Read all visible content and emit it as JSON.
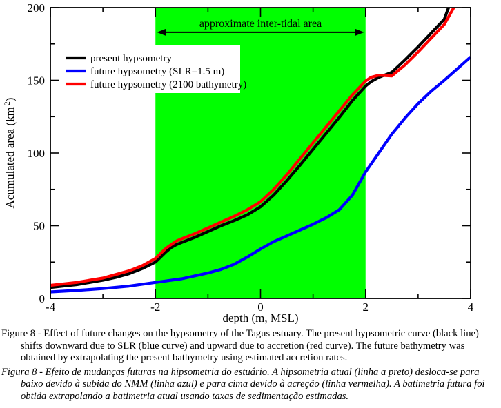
{
  "figure": {
    "caption_en": "Figure 8 - Effect of future changes on the hypsometry of the Tagus estuary. The present hypsometric curve (black line) shifts downward due to SLR (blue curve) and upward due to accretion (red curve). The future bathymetry was obtained by extrapolating the present bathymetry using estimated accretion rates.",
    "caption_pt": "Figura 8 - Efeito de mudanças futuras na hipsometria do estuário. A hipsometria atual (linha a preto) desloca-se para baixo devido à subida do NMM (linha azul) e para cima devido à acreção (linha vermelha). A batimetria futura foi obtida extrapolando a batimetria atual usando taxas de sedimentação estimadas."
  },
  "chart_data": {
    "type": "line",
    "xlabel": "depth (m, MSL)",
    "ylabel_parts": [
      "Acumulated area (km",
      "2",
      ")"
    ],
    "xlim": [
      -4,
      4
    ],
    "ylim": [
      0,
      200
    ],
    "x_major_ticks": [
      -4,
      -2,
      0,
      2,
      4
    ],
    "x_minor_ticks": [
      -3,
      -1,
      1,
      3
    ],
    "y_major_ticks": [
      0,
      50,
      100,
      150,
      200
    ],
    "y_minor_ticks": [
      25,
      75,
      125,
      175
    ],
    "grid": false,
    "legend_position": "upper-left",
    "intertidal_band": {
      "x0": -2,
      "x1": 2,
      "color": "#00ff00",
      "label": "approximate inter-tidal area",
      "arrow_y_value": 183,
      "label_y_value": 189
    },
    "series": [
      {
        "name": "present hypsometry",
        "color": "#000000",
        "points": [
          [
            -4,
            7.5
          ],
          [
            -3.75,
            8.5
          ],
          [
            -3.5,
            9.5
          ],
          [
            -3.25,
            11
          ],
          [
            -3,
            12.5
          ],
          [
            -2.75,
            14.5
          ],
          [
            -2.5,
            17
          ],
          [
            -2.25,
            20.5
          ],
          [
            -2,
            25
          ],
          [
            -1.9,
            28.5
          ],
          [
            -1.8,
            32
          ],
          [
            -1.7,
            35
          ],
          [
            -1.6,
            37
          ],
          [
            -1.5,
            38.5
          ],
          [
            -1.25,
            42
          ],
          [
            -1,
            46
          ],
          [
            -0.75,
            50
          ],
          [
            -0.5,
            53.5
          ],
          [
            -0.25,
            57.5
          ],
          [
            0,
            63
          ],
          [
            0.25,
            71
          ],
          [
            0.5,
            81
          ],
          [
            0.75,
            91.5
          ],
          [
            1,
            102.5
          ],
          [
            1.25,
            113.5
          ],
          [
            1.5,
            124.5
          ],
          [
            1.75,
            136
          ],
          [
            2,
            146
          ],
          [
            2.1,
            149
          ],
          [
            2.25,
            152
          ],
          [
            2.5,
            155.5
          ],
          [
            2.75,
            164
          ],
          [
            3,
            173
          ],
          [
            3.25,
            182.5
          ],
          [
            3.5,
            192
          ],
          [
            3.58,
            200
          ]
        ]
      },
      {
        "name": "future hypsometry (SLR=1.5 m)",
        "color": "#0000ff",
        "points": [
          [
            -4,
            4.5
          ],
          [
            -3.5,
            5.5
          ],
          [
            -3,
            6.8
          ],
          [
            -2.5,
            8.5
          ],
          [
            -2,
            11
          ],
          [
            -1.5,
            13.5
          ],
          [
            -1.25,
            15.5
          ],
          [
            -1,
            17.5
          ],
          [
            -0.75,
            20
          ],
          [
            -0.5,
            23.5
          ],
          [
            -0.25,
            28.5
          ],
          [
            0,
            34
          ],
          [
            0.25,
            39
          ],
          [
            0.5,
            43
          ],
          [
            0.75,
            47
          ],
          [
            1,
            51
          ],
          [
            1.25,
            55.5
          ],
          [
            1.5,
            61
          ],
          [
            1.75,
            71
          ],
          [
            2,
            87
          ],
          [
            2.25,
            100
          ],
          [
            2.5,
            113
          ],
          [
            2.75,
            124
          ],
          [
            3,
            134
          ],
          [
            3.25,
            142.5
          ],
          [
            3.5,
            150
          ],
          [
            3.75,
            158
          ],
          [
            4,
            166
          ]
        ]
      },
      {
        "name": "future hypsometry (2100 bathymetry)",
        "color": "#ff0000",
        "points": [
          [
            -4,
            9
          ],
          [
            -3.75,
            10
          ],
          [
            -3.5,
            11
          ],
          [
            -3.25,
            12.5
          ],
          [
            -3,
            14
          ],
          [
            -2.75,
            16.5
          ],
          [
            -2.5,
            19
          ],
          [
            -2.25,
            22.5
          ],
          [
            -2,
            27.5
          ],
          [
            -1.9,
            31
          ],
          [
            -1.8,
            34.5
          ],
          [
            -1.7,
            37
          ],
          [
            -1.6,
            39.5
          ],
          [
            -1.5,
            41
          ],
          [
            -1.25,
            44.5
          ],
          [
            -1,
            48.5
          ],
          [
            -0.75,
            52.5
          ],
          [
            -0.5,
            56.5
          ],
          [
            -0.25,
            61
          ],
          [
            0,
            66.5
          ],
          [
            0.25,
            75
          ],
          [
            0.5,
            85
          ],
          [
            0.75,
            96
          ],
          [
            1,
            107
          ],
          [
            1.25,
            118
          ],
          [
            1.5,
            129
          ],
          [
            1.75,
            140
          ],
          [
            2,
            149.5
          ],
          [
            2.1,
            152
          ],
          [
            2.25,
            153.5
          ],
          [
            2.5,
            153
          ],
          [
            2.75,
            160.5
          ],
          [
            3,
            169.5
          ],
          [
            3.25,
            179
          ],
          [
            3.5,
            188.5
          ],
          [
            3.68,
            200
          ]
        ]
      }
    ]
  }
}
